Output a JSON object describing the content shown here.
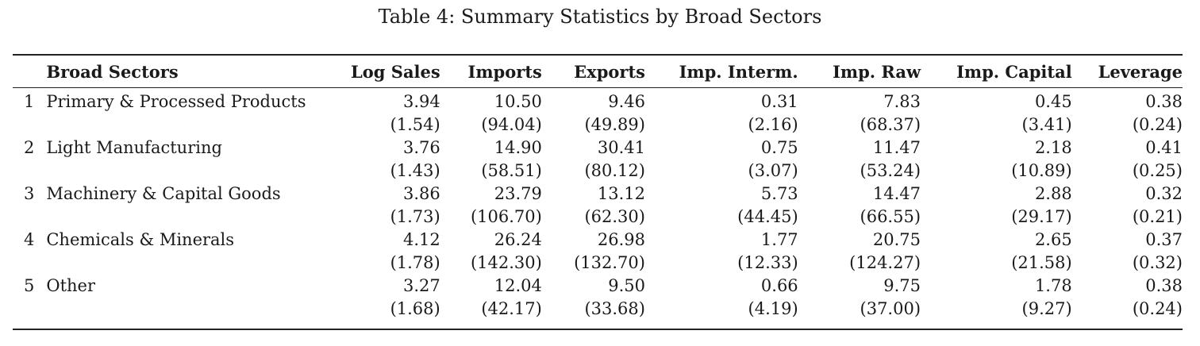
{
  "caption": "Table 4: Summary Statistics by Broad Sectors",
  "table": {
    "headers": [
      "",
      "Broad Sectors",
      "Log Sales",
      "Imports",
      "Exports",
      "Imp. Interm.",
      "Imp. Raw",
      "Imp. Capital",
      "Leverage"
    ],
    "rows": [
      {
        "num": "1",
        "sector": "Primary & Processed Products",
        "means": [
          "3.94",
          "10.50",
          "9.46",
          "0.31",
          "7.83",
          "0.45",
          "0.38"
        ],
        "sds": [
          "(1.54)",
          "(94.04)",
          "(49.89)",
          "(2.16)",
          "(68.37)",
          "(3.41)",
          "(0.24)"
        ]
      },
      {
        "num": "2",
        "sector": "Light Manufacturing",
        "means": [
          "3.76",
          "14.90",
          "30.41",
          "0.75",
          "11.47",
          "2.18",
          "0.41"
        ],
        "sds": [
          "(1.43)",
          "(58.51)",
          "(80.12)",
          "(3.07)",
          "(53.24)",
          "(10.89)",
          "(0.25)"
        ]
      },
      {
        "num": "3",
        "sector": "Machinery & Capital Goods",
        "means": [
          "3.86",
          "23.79",
          "13.12",
          "5.73",
          "14.47",
          "2.88",
          "0.32"
        ],
        "sds": [
          "(1.73)",
          "(106.70)",
          "(62.30)",
          "(44.45)",
          "(66.55)",
          "(29.17)",
          "(0.21)"
        ]
      },
      {
        "num": "4",
        "sector": "Chemicals & Minerals",
        "means": [
          "4.12",
          "26.24",
          "26.98",
          "1.77",
          "20.75",
          "2.65",
          "0.37"
        ],
        "sds": [
          "(1.78)",
          "(142.30)",
          "(132.70)",
          "(12.33)",
          "(124.27)",
          "(21.58)",
          "(0.32)"
        ]
      },
      {
        "num": "5",
        "sector": "Other",
        "means": [
          "3.27",
          "12.04",
          "9.50",
          "0.66",
          "9.75",
          "1.78",
          "0.38"
        ],
        "sds": [
          "(1.68)",
          "(42.17)",
          "(33.68)",
          "(4.19)",
          "(37.00)",
          "(9.27)",
          "(0.24)"
        ]
      }
    ]
  }
}
